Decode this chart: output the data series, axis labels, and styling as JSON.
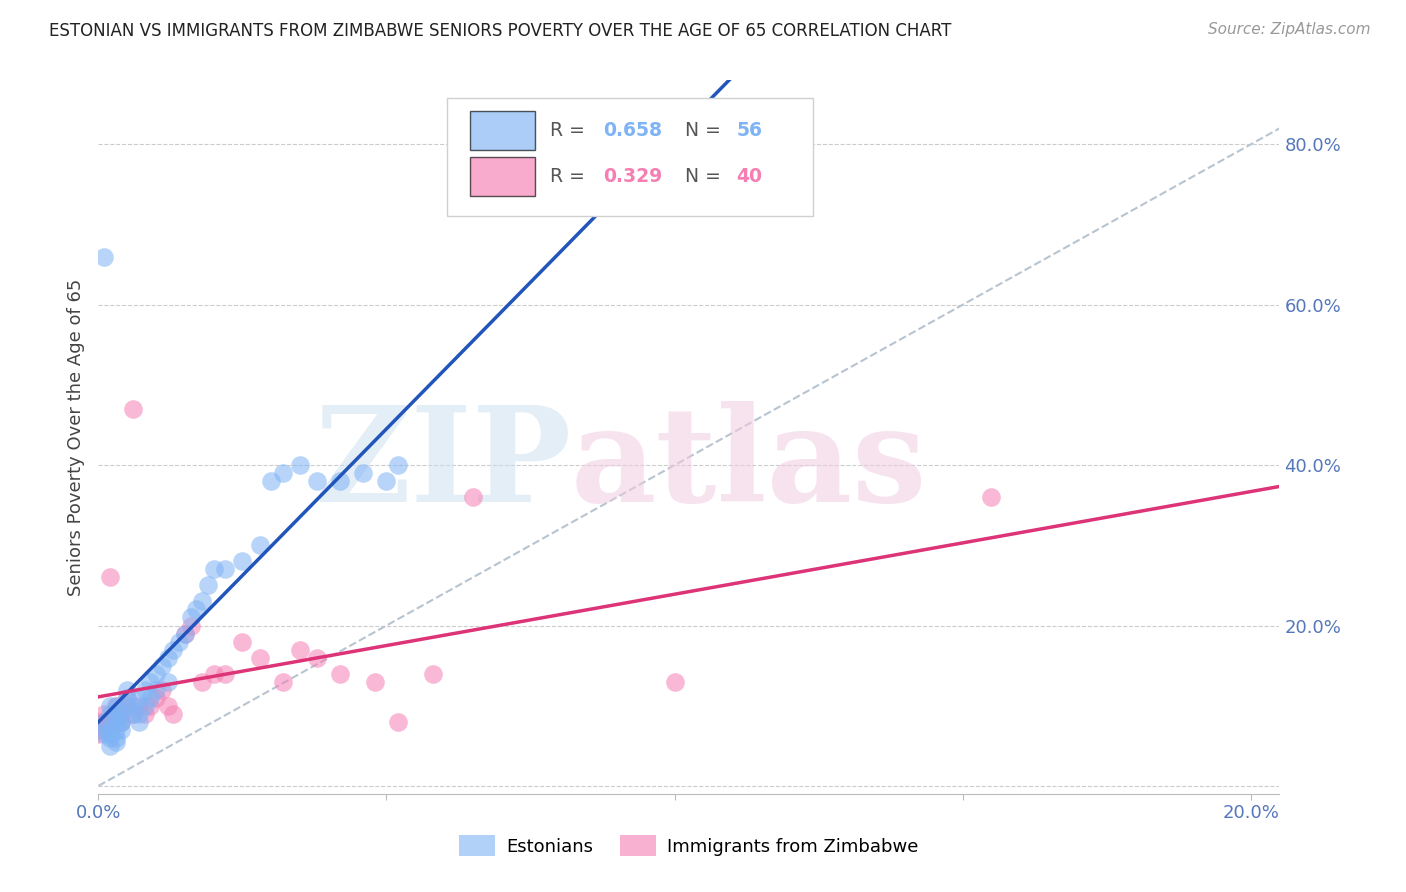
{
  "title": "ESTONIAN VS IMMIGRANTS FROM ZIMBABWE SENIORS POVERTY OVER THE AGE OF 65 CORRELATION CHART",
  "source": "Source: ZipAtlas.com",
  "ylabel": "Seniors Poverty Over the Age of 65",
  "xlim": [
    0.0,
    0.205
  ],
  "ylim": [
    -0.01,
    0.88
  ],
  "estonian_color": "#7eb3f5",
  "zimbabwe_color": "#f57eb3",
  "estonian_line_color": "#2255bb",
  "zimbabwe_line_color": "#dd3377",
  "estonian_R": 0.658,
  "estonian_N": 56,
  "zimbabwe_R": 0.329,
  "zimbabwe_N": 40,
  "estonian_x": [
    0.001,
    0.001,
    0.001,
    0.002,
    0.002,
    0.002,
    0.003,
    0.003,
    0.003,
    0.004,
    0.004,
    0.004,
    0.005,
    0.005,
    0.005,
    0.006,
    0.006,
    0.007,
    0.007,
    0.007,
    0.008,
    0.008,
    0.009,
    0.009,
    0.01,
    0.01,
    0.011,
    0.012,
    0.012,
    0.013,
    0.014,
    0.015,
    0.016,
    0.017,
    0.018,
    0.019,
    0.02,
    0.022,
    0.025,
    0.028,
    0.03,
    0.032,
    0.035,
    0.038,
    0.042,
    0.046,
    0.05,
    0.052,
    0.001,
    0.002,
    0.003,
    0.004,
    0.002,
    0.003,
    0.002,
    0.003
  ],
  "estonian_y": [
    0.065,
    0.07,
    0.08,
    0.07,
    0.09,
    0.1,
    0.08,
    0.09,
    0.1,
    0.07,
    0.08,
    0.09,
    0.1,
    0.11,
    0.12,
    0.09,
    0.1,
    0.08,
    0.09,
    0.11,
    0.1,
    0.12,
    0.11,
    0.13,
    0.12,
    0.14,
    0.15,
    0.13,
    0.16,
    0.17,
    0.18,
    0.19,
    0.21,
    0.22,
    0.23,
    0.25,
    0.27,
    0.27,
    0.28,
    0.3,
    0.38,
    0.39,
    0.4,
    0.38,
    0.38,
    0.39,
    0.38,
    0.4,
    0.66,
    0.06,
    0.07,
    0.08,
    0.05,
    0.06,
    0.065,
    0.055
  ],
  "zimbabwe_x": [
    0.0,
    0.0,
    0.0,
    0.001,
    0.001,
    0.001,
    0.002,
    0.002,
    0.003,
    0.003,
    0.004,
    0.004,
    0.005,
    0.005,
    0.006,
    0.006,
    0.007,
    0.008,
    0.009,
    0.01,
    0.011,
    0.012,
    0.013,
    0.015,
    0.016,
    0.018,
    0.02,
    0.022,
    0.025,
    0.028,
    0.032,
    0.035,
    0.038,
    0.042,
    0.048,
    0.052,
    0.058,
    0.065,
    0.1,
    0.155
  ],
  "zimbabwe_y": [
    0.065,
    0.07,
    0.08,
    0.075,
    0.08,
    0.09,
    0.07,
    0.26,
    0.09,
    0.1,
    0.08,
    0.09,
    0.1,
    0.11,
    0.09,
    0.47,
    0.1,
    0.09,
    0.1,
    0.11,
    0.12,
    0.1,
    0.09,
    0.19,
    0.2,
    0.13,
    0.14,
    0.14,
    0.18,
    0.16,
    0.13,
    0.17,
    0.16,
    0.14,
    0.13,
    0.08,
    0.14,
    0.36,
    0.13,
    0.36
  ]
}
